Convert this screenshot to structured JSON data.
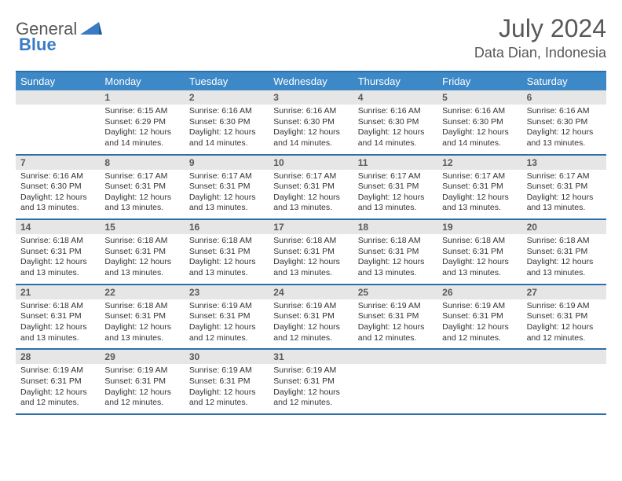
{
  "logo": {
    "part1": "General",
    "part2": "Blue"
  },
  "header": {
    "title": "July 2024",
    "location": "Data Dian, Indonesia"
  },
  "colors": {
    "header_bg": "#3d88c7",
    "header_text": "#ffffff",
    "border": "#2f6fa8",
    "daynum_bg": "#e6e6e6",
    "daynum_text": "#595959",
    "body_text": "#333333",
    "title_text": "#585858",
    "logo_gray": "#585858",
    "logo_blue": "#3a7cc4",
    "page_bg": "#ffffff"
  },
  "typography": {
    "title_fontsize": 32,
    "location_fontsize": 18,
    "weekday_fontsize": 13,
    "daynum_fontsize": 12,
    "content_fontsize": 10.5
  },
  "calendar": {
    "type": "table",
    "weekdays": [
      "Sunday",
      "Monday",
      "Tuesday",
      "Wednesday",
      "Thursday",
      "Friday",
      "Saturday"
    ],
    "startBlank": 1,
    "days": [
      {
        "n": 1,
        "sunrise": "6:15 AM",
        "sunset": "6:29 PM",
        "dl": "12 hours and 14 minutes."
      },
      {
        "n": 2,
        "sunrise": "6:16 AM",
        "sunset": "6:30 PM",
        "dl": "12 hours and 14 minutes."
      },
      {
        "n": 3,
        "sunrise": "6:16 AM",
        "sunset": "6:30 PM",
        "dl": "12 hours and 14 minutes."
      },
      {
        "n": 4,
        "sunrise": "6:16 AM",
        "sunset": "6:30 PM",
        "dl": "12 hours and 14 minutes."
      },
      {
        "n": 5,
        "sunrise": "6:16 AM",
        "sunset": "6:30 PM",
        "dl": "12 hours and 14 minutes."
      },
      {
        "n": 6,
        "sunrise": "6:16 AM",
        "sunset": "6:30 PM",
        "dl": "12 hours and 13 minutes."
      },
      {
        "n": 7,
        "sunrise": "6:16 AM",
        "sunset": "6:30 PM",
        "dl": "12 hours and 13 minutes."
      },
      {
        "n": 8,
        "sunrise": "6:17 AM",
        "sunset": "6:31 PM",
        "dl": "12 hours and 13 minutes."
      },
      {
        "n": 9,
        "sunrise": "6:17 AM",
        "sunset": "6:31 PM",
        "dl": "12 hours and 13 minutes."
      },
      {
        "n": 10,
        "sunrise": "6:17 AM",
        "sunset": "6:31 PM",
        "dl": "12 hours and 13 minutes."
      },
      {
        "n": 11,
        "sunrise": "6:17 AM",
        "sunset": "6:31 PM",
        "dl": "12 hours and 13 minutes."
      },
      {
        "n": 12,
        "sunrise": "6:17 AM",
        "sunset": "6:31 PM",
        "dl": "12 hours and 13 minutes."
      },
      {
        "n": 13,
        "sunrise": "6:17 AM",
        "sunset": "6:31 PM",
        "dl": "12 hours and 13 minutes."
      },
      {
        "n": 14,
        "sunrise": "6:18 AM",
        "sunset": "6:31 PM",
        "dl": "12 hours and 13 minutes."
      },
      {
        "n": 15,
        "sunrise": "6:18 AM",
        "sunset": "6:31 PM",
        "dl": "12 hours and 13 minutes."
      },
      {
        "n": 16,
        "sunrise": "6:18 AM",
        "sunset": "6:31 PM",
        "dl": "12 hours and 13 minutes."
      },
      {
        "n": 17,
        "sunrise": "6:18 AM",
        "sunset": "6:31 PM",
        "dl": "12 hours and 13 minutes."
      },
      {
        "n": 18,
        "sunrise": "6:18 AM",
        "sunset": "6:31 PM",
        "dl": "12 hours and 13 minutes."
      },
      {
        "n": 19,
        "sunrise": "6:18 AM",
        "sunset": "6:31 PM",
        "dl": "12 hours and 13 minutes."
      },
      {
        "n": 20,
        "sunrise": "6:18 AM",
        "sunset": "6:31 PM",
        "dl": "12 hours and 13 minutes."
      },
      {
        "n": 21,
        "sunrise": "6:18 AM",
        "sunset": "6:31 PM",
        "dl": "12 hours and 13 minutes."
      },
      {
        "n": 22,
        "sunrise": "6:18 AM",
        "sunset": "6:31 PM",
        "dl": "12 hours and 13 minutes."
      },
      {
        "n": 23,
        "sunrise": "6:19 AM",
        "sunset": "6:31 PM",
        "dl": "12 hours and 12 minutes."
      },
      {
        "n": 24,
        "sunrise": "6:19 AM",
        "sunset": "6:31 PM",
        "dl": "12 hours and 12 minutes."
      },
      {
        "n": 25,
        "sunrise": "6:19 AM",
        "sunset": "6:31 PM",
        "dl": "12 hours and 12 minutes."
      },
      {
        "n": 26,
        "sunrise": "6:19 AM",
        "sunset": "6:31 PM",
        "dl": "12 hours and 12 minutes."
      },
      {
        "n": 27,
        "sunrise": "6:19 AM",
        "sunset": "6:31 PM",
        "dl": "12 hours and 12 minutes."
      },
      {
        "n": 28,
        "sunrise": "6:19 AM",
        "sunset": "6:31 PM",
        "dl": "12 hours and 12 minutes."
      },
      {
        "n": 29,
        "sunrise": "6:19 AM",
        "sunset": "6:31 PM",
        "dl": "12 hours and 12 minutes."
      },
      {
        "n": 30,
        "sunrise": "6:19 AM",
        "sunset": "6:31 PM",
        "dl": "12 hours and 12 minutes."
      },
      {
        "n": 31,
        "sunrise": "6:19 AM",
        "sunset": "6:31 PM",
        "dl": "12 hours and 12 minutes."
      }
    ],
    "labels": {
      "sunrise": "Sunrise:",
      "sunset": "Sunset:",
      "daylight": "Daylight:"
    }
  }
}
